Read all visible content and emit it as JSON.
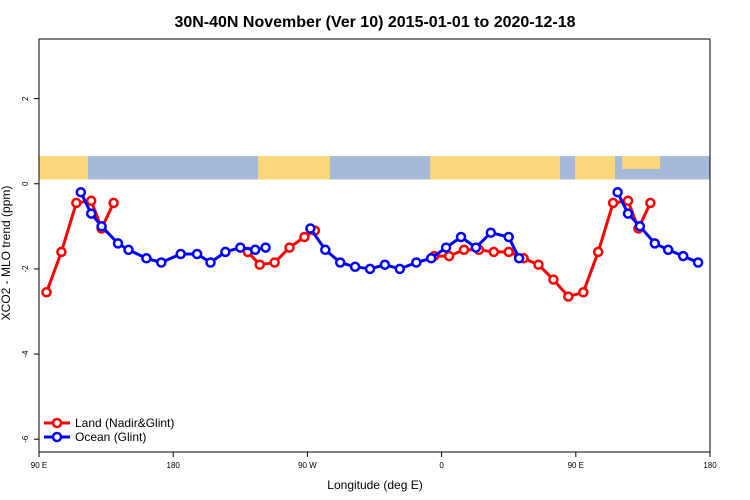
{
  "chart_data": {
    "type": "line",
    "title": "30N-40N November (Ver 10)   2015-01-01 to 2020-12-18",
    "xlabel": "Longitude (deg E)",
    "ylabel": "XCO2 - MLO trend (ppm)",
    "xlim": [
      90,
      540
    ],
    "ylim": [
      -6.3,
      3.4
    ],
    "x_ticks": [
      {
        "value": 90,
        "label": "90 E"
      },
      {
        "value": 180,
        "label": "180"
      },
      {
        "value": 270,
        "label": "90 W"
      },
      {
        "value": 360,
        "label": "0"
      },
      {
        "value": 450,
        "label": "90 E"
      },
      {
        "value": 540,
        "label": "180"
      }
    ],
    "y_ticks": [
      {
        "value": 2,
        "label": "2"
      },
      {
        "value": 0,
        "label": "0"
      },
      {
        "value": -2,
        "label": "-2"
      },
      {
        "value": -4,
        "label": "-4"
      },
      {
        "value": -6,
        "label": "-6"
      }
    ],
    "series": [
      {
        "name": "Land (Nadir&Glint)",
        "color": "#ff0000",
        "points": [
          [
            95,
            -2.55
          ],
          [
            105,
            -1.6
          ],
          [
            115,
            -0.45
          ],
          [
            125,
            -0.4
          ],
          [
            132,
            -1.05
          ],
          [
            140,
            -0.45
          ],
          [
            230,
            -1.6
          ],
          [
            238,
            -1.9
          ],
          [
            248,
            -1.85
          ],
          [
            258,
            -1.5
          ],
          [
            268,
            -1.25
          ],
          [
            275,
            -1.1
          ],
          [
            355,
            -1.7
          ],
          [
            365,
            -1.7
          ],
          [
            375,
            -1.55
          ],
          [
            385,
            -1.55
          ],
          [
            395,
            -1.6
          ],
          [
            405,
            -1.6
          ],
          [
            415,
            -1.75
          ],
          [
            425,
            -1.9
          ],
          [
            435,
            -2.25
          ],
          [
            445,
            -2.65
          ],
          [
            455,
            -2.55
          ],
          [
            465,
            -1.6
          ],
          [
            475,
            -0.45
          ],
          [
            485,
            -0.4
          ],
          [
            492,
            -1.05
          ],
          [
            500,
            -0.45
          ]
        ]
      },
      {
        "name": "Ocean (Glint)",
        "color": "#0000ff",
        "points": [
          [
            118,
            -0.2
          ],
          [
            125,
            -0.7
          ],
          [
            132,
            -1.0
          ],
          [
            143,
            -1.4
          ],
          [
            150,
            -1.55
          ],
          [
            162,
            -1.75
          ],
          [
            172,
            -1.85
          ],
          [
            185,
            -1.65
          ],
          [
            196,
            -1.65
          ],
          [
            205,
            -1.85
          ],
          [
            215,
            -1.6
          ],
          [
            225,
            -1.5
          ],
          [
            235,
            -1.55
          ],
          [
            242,
            -1.5
          ],
          [
            272,
            -1.05
          ],
          [
            282,
            -1.55
          ],
          [
            292,
            -1.85
          ],
          [
            302,
            -1.95
          ],
          [
            312,
            -2.0
          ],
          [
            322,
            -1.9
          ],
          [
            332,
            -2.0
          ],
          [
            343,
            -1.85
          ],
          [
            353,
            -1.75
          ],
          [
            363,
            -1.5
          ],
          [
            373,
            -1.25
          ],
          [
            383,
            -1.5
          ],
          [
            393,
            -1.15
          ],
          [
            405,
            -1.25
          ],
          [
            412,
            -1.75
          ]
        ],
        "points_segment2": [
          [
            478,
            -0.2
          ],
          [
            485,
            -0.7
          ],
          [
            493,
            -1.0
          ],
          [
            503,
            -1.4
          ],
          [
            512,
            -1.55
          ],
          [
            522,
            -1.7
          ],
          [
            532,
            -1.85
          ]
        ]
      }
    ],
    "legend_position": "bottom-left",
    "map_band": {
      "y_range": [
        0.1,
        0.65
      ],
      "ocean_color": "#a5b9d9",
      "land_color": "#fad77a"
    }
  }
}
